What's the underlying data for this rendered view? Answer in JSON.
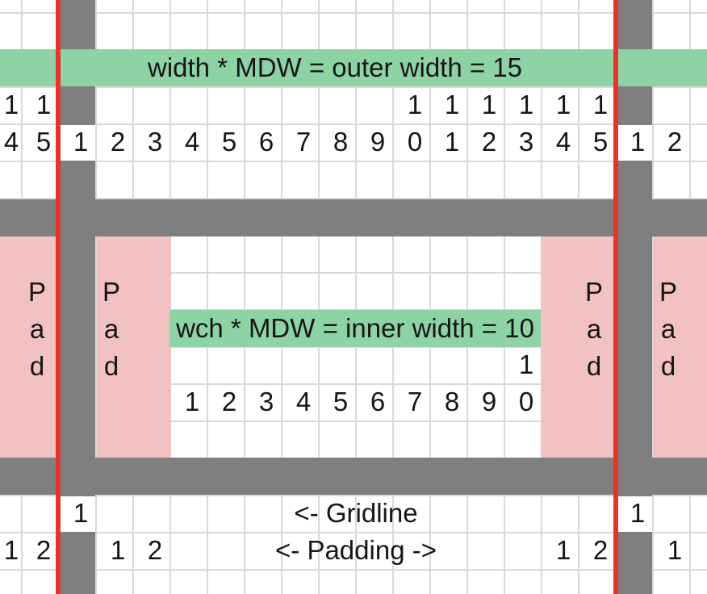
{
  "colors": {
    "green_banner": "#8DD3A6",
    "pink_pad": "#F2C2C2",
    "gray_block": "#7F7F7F",
    "red_gridline": "#E7342A",
    "cell_gridline": "#D9D9D9",
    "text": "#161616",
    "background": "#FFFFFF"
  },
  "banners": {
    "outer": "width * MDW = outer width = 15",
    "inner": "wch * MDW = inner width = 10"
  },
  "labels": {
    "gridline": "<- Gridline",
    "padding": "<- Padding ->",
    "pad_letters": [
      "P",
      "a",
      "d"
    ]
  },
  "padding_blocks": [
    {
      "col": 1
    },
    {
      "col": 3
    },
    {
      "col": 16
    },
    {
      "col": 18
    }
  ],
  "grid_numbers": {
    "outer_tens": [
      {
        "col": 0,
        "v": "1"
      },
      {
        "col": 1,
        "v": "1"
      },
      {
        "col": 11,
        "v": "1"
      },
      {
        "col": 12,
        "v": "1"
      },
      {
        "col": 13,
        "v": "1"
      },
      {
        "col": 14,
        "v": "1"
      },
      {
        "col": 15,
        "v": "1"
      },
      {
        "col": 16,
        "v": "1"
      }
    ],
    "outer_ones": [
      {
        "col": 0,
        "v": "4"
      },
      {
        "col": 1,
        "v": "5"
      },
      {
        "col": 2,
        "v": "1"
      },
      {
        "col": 3,
        "v": "2"
      },
      {
        "col": 4,
        "v": "3"
      },
      {
        "col": 5,
        "v": "4"
      },
      {
        "col": 6,
        "v": "5"
      },
      {
        "col": 7,
        "v": "6"
      },
      {
        "col": 8,
        "v": "7"
      },
      {
        "col": 9,
        "v": "8"
      },
      {
        "col": 10,
        "v": "9"
      },
      {
        "col": 11,
        "v": "0"
      },
      {
        "col": 12,
        "v": "1"
      },
      {
        "col": 13,
        "v": "2"
      },
      {
        "col": 14,
        "v": "3"
      },
      {
        "col": 15,
        "v": "4"
      },
      {
        "col": 16,
        "v": "5"
      },
      {
        "col": 17,
        "v": "1"
      },
      {
        "col": 18,
        "v": "2"
      }
    ],
    "inner_tens": [
      {
        "col": 14,
        "v": "1"
      }
    ],
    "inner_ones": [
      {
        "col": 5,
        "v": "1"
      },
      {
        "col": 6,
        "v": "2"
      },
      {
        "col": 7,
        "v": "3"
      },
      {
        "col": 8,
        "v": "4"
      },
      {
        "col": 9,
        "v": "5"
      },
      {
        "col": 10,
        "v": "6"
      },
      {
        "col": 11,
        "v": "7"
      },
      {
        "col": 12,
        "v": "8"
      },
      {
        "col": 13,
        "v": "9"
      },
      {
        "col": 14,
        "v": "0"
      }
    ],
    "gridline_row": [
      {
        "col": 2,
        "v": "1"
      },
      {
        "col": 17,
        "v": "1"
      }
    ],
    "padding_row": [
      {
        "col": 0,
        "v": "1"
      },
      {
        "col": 1,
        "v": "2"
      },
      {
        "col": 3,
        "v": "1"
      },
      {
        "col": 4,
        "v": "2"
      },
      {
        "col": 15,
        "v": "1"
      },
      {
        "col": 16,
        "v": "2"
      },
      {
        "col": 18,
        "v": "1"
      }
    ]
  }
}
